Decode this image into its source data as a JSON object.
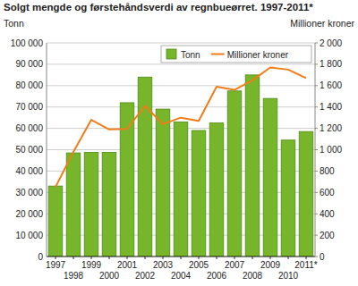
{
  "chart_data": {
    "type": "bar",
    "title": "Solgt mengde og førstehåndsverdi av regnbueørret. 1997-2011*",
    "y_label": "Tonn",
    "y2_label": "Millioner kroner",
    "categories": [
      "1997",
      "1998",
      "1999",
      "2000",
      "2001",
      "2002",
      "2003",
      "2004",
      "2005",
      "2006",
      "2007",
      "2008",
      "2009",
      "2010",
      "2011*"
    ],
    "series": [
      {
        "name": "Tonn",
        "type": "bar",
        "color": "#77b52a",
        "values": [
          33000,
          48500,
          48800,
          48800,
          72000,
          84000,
          69000,
          63000,
          59000,
          62500,
          77500,
          85000,
          74000,
          54500,
          58500
        ]
      },
      {
        "name": "Millioner kroner",
        "type": "line",
        "color": "#f07d1a",
        "axis": "y2",
        "values": [
          650,
          980,
          1280,
          1190,
          1195,
          1410,
          1240,
          1300,
          1270,
          1590,
          1560,
          1650,
          1770,
          1750,
          1670
        ]
      }
    ],
    "ylim": [
      0,
      100000
    ],
    "yticks": [
      0,
      {
        "value": 10000,
        "label": "10 000"
      },
      {
        "value": 20000,
        "label": "20 000"
      },
      {
        "value": 30000,
        "label": "30 000"
      },
      {
        "value": 40000,
        "label": "40 000"
      },
      {
        "value": 50000,
        "label": "50 000"
      },
      {
        "value": 60000,
        "label": "60 000"
      },
      {
        "value": 70000,
        "label": "70 000"
      },
      {
        "value": 80000,
        "label": "80 000"
      },
      {
        "value": 90000,
        "label": "90 000"
      },
      {
        "value": 100000,
        "label": "100 000"
      }
    ],
    "y2lim": [
      0,
      2000
    ],
    "y2ticks": [
      0,
      200,
      400,
      600,
      800,
      {
        "value": 1000,
        "label": "1 000"
      },
      {
        "value": 1200,
        "label": "1 200"
      },
      {
        "value": 1400,
        "label": "1 400"
      },
      {
        "value": 1600,
        "label": "1 600"
      },
      {
        "value": 1800,
        "label": "1 800"
      },
      {
        "value": 2000,
        "label": "2 000"
      }
    ],
    "grid": true,
    "legend": "top-right"
  }
}
